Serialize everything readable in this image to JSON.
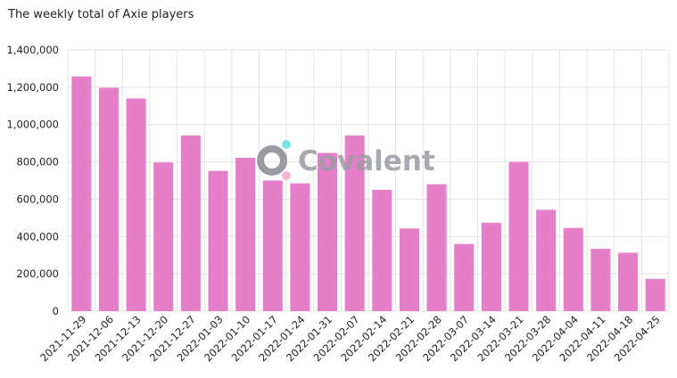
{
  "chart_data": {
    "type": "bar",
    "title": "The weekly total of Axie players",
    "xlabel": "",
    "ylabel": "",
    "ylim": [
      0,
      1400000
    ],
    "yticks": [
      0,
      200000,
      400000,
      600000,
      800000,
      1000000,
      1200000,
      1400000
    ],
    "ytick_labels": [
      "0",
      "200,000",
      "400,000",
      "600,000",
      "800,000",
      "1,000,000",
      "1,200,000",
      "1,400,000"
    ],
    "grid": true,
    "legend": "none",
    "bar_color": "#e57fc9",
    "categories": [
      "2021-11-29",
      "2021-12-06",
      "2021-12-13",
      "2021-12-20",
      "2021-12-27",
      "2022-01-03",
      "2022-01-10",
      "2022-01-17",
      "2022-01-24",
      "2022-01-31",
      "2022-02-07",
      "2022-02-14",
      "2022-02-21",
      "2022-02-28",
      "2022-03-07",
      "2022-03-14",
      "2022-03-21",
      "2022-03-28",
      "2022-04-04",
      "2022-04-11",
      "2022-04-18",
      "2022-04-25"
    ],
    "values": [
      1258000,
      1197000,
      1140000,
      797000,
      942000,
      752000,
      822000,
      700000,
      685000,
      848000,
      942000,
      650000,
      443000,
      680000,
      360000,
      474000,
      800000,
      543000,
      446000,
      334000,
      313000,
      173000
    ]
  },
  "watermark": {
    "text": "Covalent",
    "colors": {
      "ring": "#9a9aa3",
      "dot_top": "#7ee3e8",
      "dot_bottom": "#f7b3d4"
    }
  }
}
